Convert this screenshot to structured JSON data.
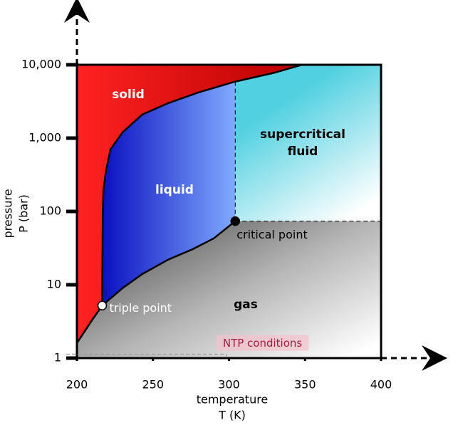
{
  "chart_data": {
    "type": "phase-diagram",
    "x_label": [
      "temperature",
      "T (K)"
    ],
    "y_label": [
      "pressure",
      "P (bar)"
    ],
    "xlim": [
      200,
      400
    ],
    "xticks": [
      200,
      250,
      300,
      350,
      400
    ],
    "ylim": [
      1,
      10000
    ],
    "log_y": true,
    "yticks": [
      1,
      10,
      100,
      {
        "value": 1000,
        "label": "1,000"
      },
      {
        "value": 10000,
        "label": "10,000"
      }
    ],
    "boundaries": [
      {
        "x": [
          200,
          205,
          210,
          216.6
        ],
        "y": [
          1.6,
          2.3,
          3.3,
          5.2
        ]
      },
      {
        "x": [
          216.6,
          217,
          217.5,
          219,
          222,
          230,
          243,
          260,
          280,
          304.1,
          330,
          348
        ],
        "y": [
          5.2,
          100,
          200,
          350,
          700,
          1200,
          2100,
          3000,
          4200,
          5900,
          7800,
          10000
        ]
      },
      {
        "x": [
          216.6,
          230,
          243,
          260,
          276,
          290,
          304.1
        ],
        "y": [
          5.2,
          9,
          14,
          22,
          30.5,
          43,
          73.8
        ]
      }
    ],
    "points": [
      {
        "label": "triple point",
        "x": 216.6,
        "y": 5.2,
        "color": "#ffffff"
      },
      {
        "label": "critical point",
        "x": 304.1,
        "y": 73.8,
        "color": "#000000"
      }
    ],
    "ntp": {
      "label": "NTP conditions",
      "x": 298.15,
      "y": 1.13
    },
    "region_labels": [
      [
        "solid"
      ],
      [
        "liquid"
      ],
      [
        "supercritical",
        "fluid"
      ],
      [
        "gas"
      ]
    ]
  }
}
